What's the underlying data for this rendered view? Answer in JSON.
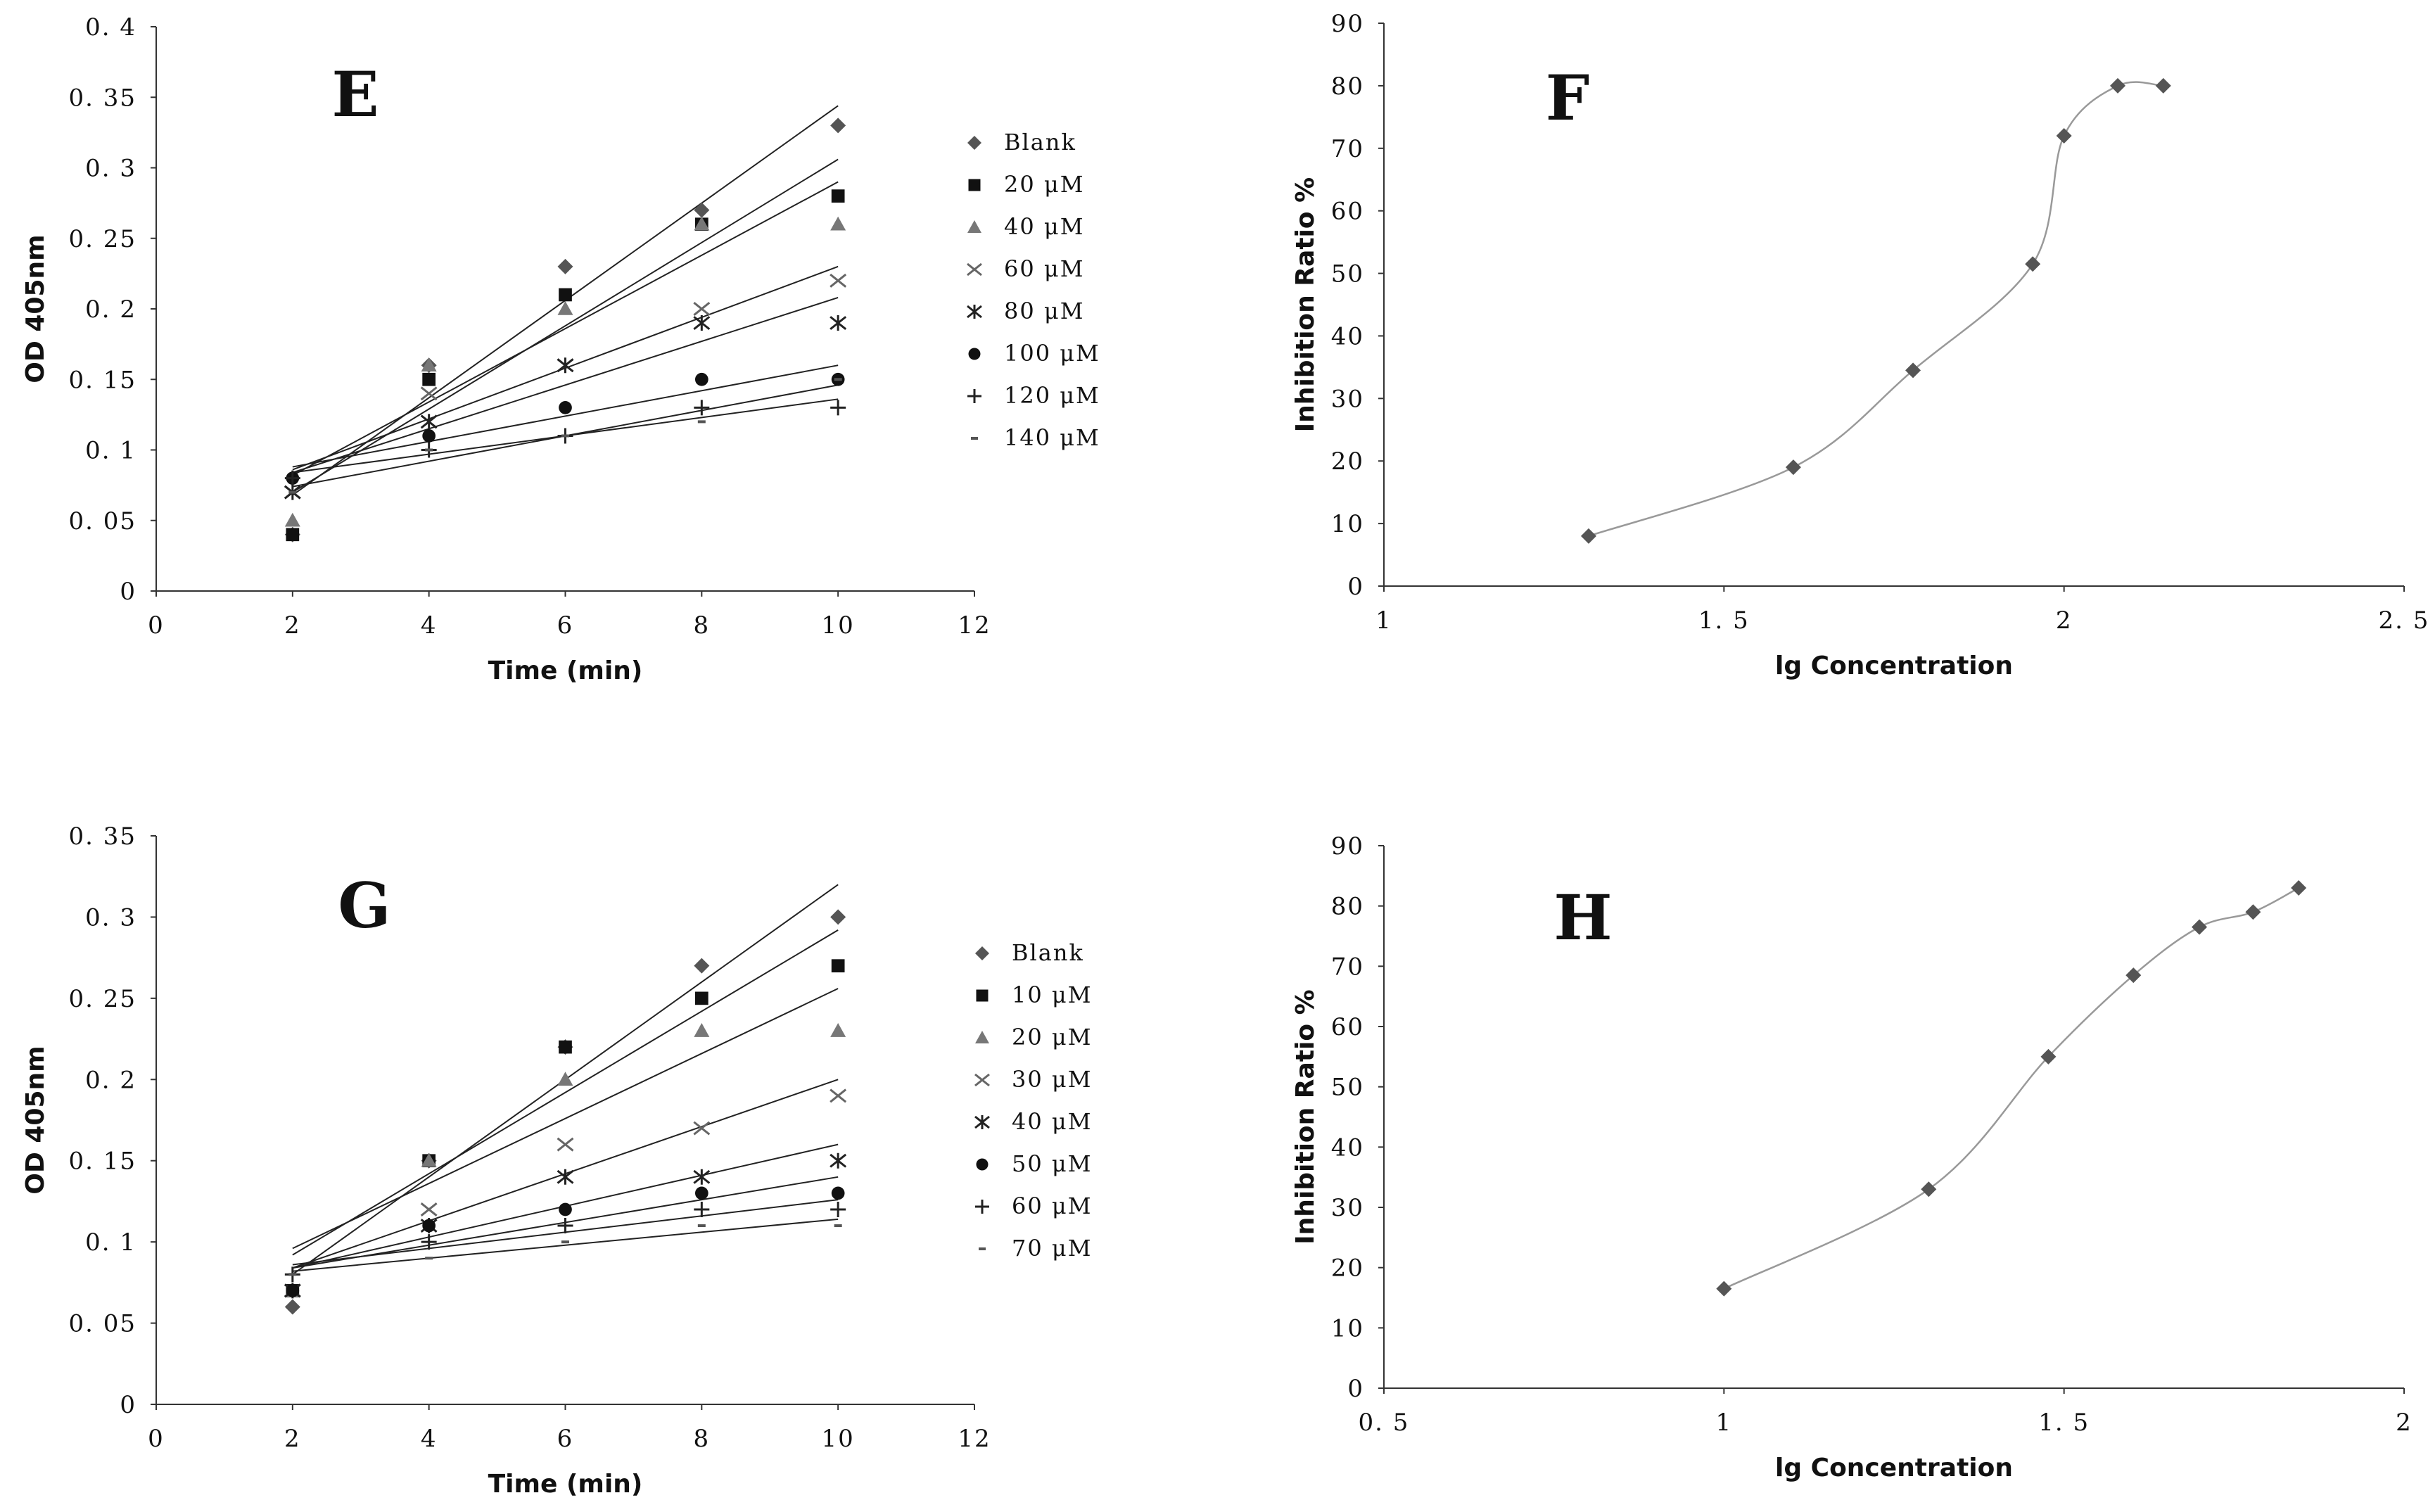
{
  "chart_data": [
    {
      "id": "E",
      "type": "scatter",
      "panel_label": "E",
      "xlabel": "Time (min)",
      "ylabel": "OD 405nm",
      "xlim": [
        0,
        12
      ],
      "ylim": [
        0,
        0.4
      ],
      "x_ticks": [
        0,
        2,
        4,
        6,
        8,
        10,
        12
      ],
      "y_ticks": [
        0,
        0.05,
        0.1,
        0.15,
        0.2,
        0.25,
        0.3,
        0.35,
        0.4
      ],
      "y_tick_labels": [
        "0",
        "0. 05",
        "0. 1",
        "0. 15",
        "0. 2",
        "0. 25",
        "0. 3",
        "0. 35",
        "0. 4"
      ],
      "x_tick_labels": [
        "0",
        "2",
        "4",
        "6",
        "8",
        "10",
        "12"
      ],
      "grid": false,
      "legend_position": "right",
      "trendlines": "linear",
      "x": [
        2,
        4,
        6,
        8,
        10
      ],
      "series": [
        {
          "name": "Blank",
          "marker": "diamond",
          "values": [
            0.04,
            0.16,
            0.23,
            0.27,
            0.33
          ]
        },
        {
          "name": "20  μM",
          "marker": "square",
          "values": [
            0.04,
            0.15,
            0.21,
            0.26,
            0.28
          ]
        },
        {
          "name": "40  μM",
          "marker": "triangle",
          "values": [
            0.05,
            0.16,
            0.2,
            0.26,
            0.26
          ]
        },
        {
          "name": "60  μM",
          "marker": "x",
          "values": [
            0.07,
            0.14,
            0.16,
            0.2,
            0.22
          ]
        },
        {
          "name": "80  μM",
          "marker": "star",
          "values": [
            0.07,
            0.12,
            0.16,
            0.19,
            0.19
          ]
        },
        {
          "name": "100  μM",
          "marker": "circle",
          "values": [
            0.08,
            0.11,
            0.13,
            0.15,
            0.15
          ]
        },
        {
          "name": "120  μM",
          "marker": "plus",
          "values": [
            0.08,
            0.1,
            0.11,
            0.13,
            0.13
          ]
        },
        {
          "name": "140  μM",
          "marker": "dash",
          "values": [
            0.07,
            0.1,
            0.11,
            0.12,
            0.15
          ]
        }
      ]
    },
    {
      "id": "F",
      "type": "line",
      "panel_label": "F",
      "xlabel": "lg Concentration",
      "ylabel": "Inhibition Ratio %",
      "xlim": [
        1,
        2.5
      ],
      "ylim": [
        0,
        90
      ],
      "x_ticks": [
        1,
        1.5,
        2,
        2.5
      ],
      "x_tick_labels": [
        "1",
        "1. 5",
        "2",
        "2. 5"
      ],
      "y_ticks": [
        0,
        10,
        20,
        30,
        40,
        50,
        60,
        70,
        80,
        90
      ],
      "y_tick_labels": [
        "0",
        "10",
        "20",
        "30",
        "40",
        "50",
        "60",
        "70",
        "80",
        "90"
      ],
      "grid": false,
      "smooth": true,
      "series": [
        {
          "marker": "diamond",
          "x": [
            1.301,
            1.602,
            1.778,
            1.954,
            2.0,
            2.079,
            2.146
          ],
          "values": [
            8,
            19,
            34.5,
            51.5,
            72,
            80,
            80
          ]
        }
      ]
    },
    {
      "id": "G",
      "type": "scatter",
      "panel_label": "G",
      "xlabel": "Time (min)",
      "ylabel": "OD 405nm",
      "xlim": [
        0,
        12
      ],
      "ylim": [
        0,
        0.35
      ],
      "x_ticks": [
        0,
        2,
        4,
        6,
        8,
        10,
        12
      ],
      "x_tick_labels": [
        "0",
        "2",
        "4",
        "6",
        "8",
        "10",
        "12"
      ],
      "y_ticks": [
        0,
        0.05,
        0.1,
        0.15,
        0.2,
        0.25,
        0.3,
        0.35
      ],
      "y_tick_labels": [
        "0",
        "0. 05",
        "0. 1",
        "0. 15",
        "0. 2",
        "0. 25",
        "0. 3",
        "0. 35"
      ],
      "grid": false,
      "legend_position": "right",
      "trendlines": "linear",
      "x": [
        2,
        4,
        6,
        8,
        10
      ],
      "series": [
        {
          "name": "Blank",
          "marker": "diamond",
          "values": [
            0.06,
            0.15,
            0.22,
            0.27,
            0.3
          ]
        },
        {
          "name": "10  μM",
          "marker": "square",
          "values": [
            0.07,
            0.15,
            0.22,
            0.25,
            0.27
          ]
        },
        {
          "name": "20  μM",
          "marker": "triangle",
          "values": [
            0.07,
            0.15,
            0.2,
            0.23,
            0.23
          ]
        },
        {
          "name": "30  μM",
          "marker": "x",
          "values": [
            0.07,
            0.12,
            0.16,
            0.17,
            0.19
          ]
        },
        {
          "name": "40  μM",
          "marker": "star",
          "values": [
            0.07,
            0.11,
            0.14,
            0.14,
            0.15
          ]
        },
        {
          "name": "50  μM",
          "marker": "circle",
          "values": [
            0.07,
            0.11,
            0.12,
            0.13,
            0.13
          ]
        },
        {
          "name": "60  μM",
          "marker": "plus",
          "values": [
            0.08,
            0.1,
            0.11,
            0.12,
            0.12
          ]
        },
        {
          "name": "70  μM",
          "marker": "dash",
          "values": [
            0.08,
            0.09,
            0.1,
            0.11,
            0.11
          ]
        }
      ]
    },
    {
      "id": "H",
      "type": "line",
      "panel_label": "H",
      "xlabel": "lg Concentration",
      "ylabel": "Inhibition Ratio %",
      "xlim": [
        0.5,
        2
      ],
      "ylim": [
        0,
        90
      ],
      "x_ticks": [
        0.5,
        1,
        1.5,
        2
      ],
      "x_tick_labels": [
        "0. 5",
        "1",
        "1. 5",
        "2"
      ],
      "y_ticks": [
        0,
        10,
        20,
        30,
        40,
        50,
        60,
        70,
        80,
        90
      ],
      "y_tick_labels": [
        "0",
        "10",
        "20",
        "30",
        "40",
        "50",
        "60",
        "70",
        "80",
        "90"
      ],
      "grid": false,
      "smooth": true,
      "series": [
        {
          "marker": "diamond",
          "x": [
            1.0,
            1.301,
            1.477,
            1.602,
            1.699,
            1.778,
            1.845
          ],
          "values": [
            16.5,
            33,
            55,
            68.5,
            76.5,
            79,
            83
          ]
        }
      ]
    }
  ]
}
